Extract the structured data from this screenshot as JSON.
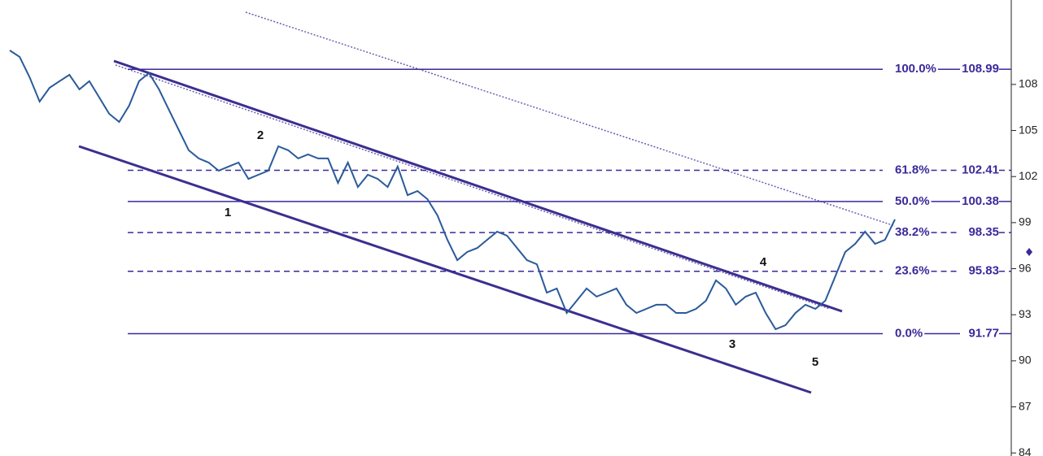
{
  "chart_data": {
    "type": "line",
    "series": [
      {
        "color": "#2a5a9a",
        "values": [
          110.22,
          109.79,
          108.47,
          106.88,
          107.78,
          108.21,
          108.63,
          107.68,
          108.21,
          107.15,
          106.09,
          105.56,
          106.62,
          108.21,
          108.74,
          107.68,
          106.35,
          105.03,
          103.71,
          103.18,
          102.91,
          102.38,
          102.65,
          102.91,
          101.85,
          102.12,
          102.38,
          103.97,
          103.71,
          103.18,
          103.44,
          103.18,
          103.18,
          101.59,
          102.91,
          101.32,
          102.12,
          101.85,
          101.32,
          102.65,
          100.79,
          101.06,
          100.53,
          99.47,
          97.88,
          96.56,
          97.09,
          97.35,
          97.88,
          98.41,
          98.15,
          97.35,
          96.56,
          96.29,
          94.44,
          94.71,
          93.12,
          93.91,
          94.71,
          94.18,
          94.44,
          94.71,
          93.65,
          93.12,
          93.38,
          93.65,
          93.65,
          93.12,
          93.12,
          93.38,
          93.91,
          95.24,
          94.71,
          93.65,
          94.18,
          94.44,
          93.12,
          92.06,
          92.32,
          93.12,
          93.65,
          93.38,
          93.91,
          95.5,
          97.09,
          97.62,
          98.41,
          97.62,
          97.88,
          99.21
        ]
      }
    ],
    "ylim": [
      83.8,
      113.5
    ],
    "yticks": [
      84,
      87,
      90,
      93,
      96,
      99,
      102,
      105,
      108
    ],
    "levels": [
      {
        "ratio": "100.0%",
        "price": 108.99,
        "style": "solid"
      },
      {
        "ratio": "61.8%",
        "price": 102.41,
        "style": "dashed"
      },
      {
        "ratio": "50.0%",
        "price": 100.38,
        "style": "solid"
      },
      {
        "ratio": "38.2%",
        "price": 98.35,
        "style": "dashed"
      },
      {
        "ratio": "23.6%",
        "price": 95.83,
        "style": "dashed"
      },
      {
        "ratio": "0.0%",
        "price": 91.77,
        "style": "solid"
      }
    ],
    "level_color": "#3a2a9a",
    "annotations": [
      "1",
      "2",
      "3",
      "4",
      "5"
    ]
  }
}
